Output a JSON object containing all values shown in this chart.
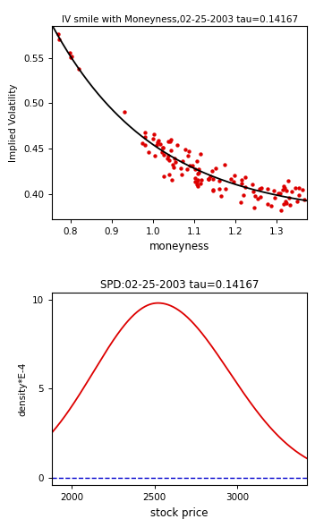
{
  "title_upper": "IV smile with Moneyness,02-25-2003 tau=0.14167",
  "title_lower": "SPD:02-25-2003 tau=0.14167",
  "upper": {
    "xlabel": "moneyness",
    "ylabel": "Implied Volatility",
    "xlim": [
      0.755,
      1.375
    ],
    "ylim": [
      0.373,
      0.585
    ],
    "yticks": [
      0.4,
      0.45,
      0.5,
      0.55
    ],
    "xticks": [
      0.8,
      0.9,
      1.0,
      1.1,
      1.2,
      1.3
    ],
    "scatter_color": "#dd0000",
    "line_color": "#000000"
  },
  "lower": {
    "xlabel": "stock price",
    "ylabel": "density*E-4",
    "xlim": [
      1880,
      3420
    ],
    "ylim": [
      -0.4,
      10.4
    ],
    "yticks": [
      0,
      5,
      10
    ],
    "xticks": [
      2000,
      2500,
      3000
    ],
    "line_color": "#dd0000",
    "hline_color": "#0000cc",
    "hline_style": "--"
  }
}
